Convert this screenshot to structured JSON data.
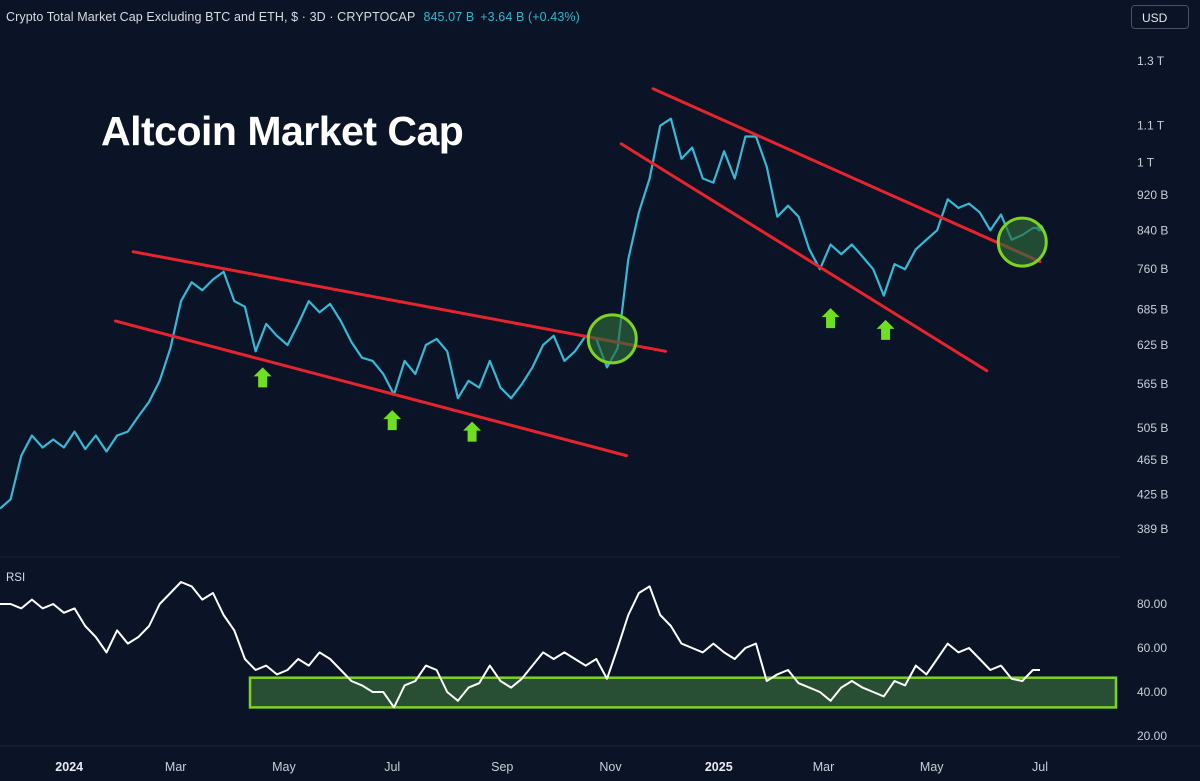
{
  "header": {
    "symbol": "Crypto Total Market Cap Excluding BTC and ETH, $ · 3D · CRYPTOCAP",
    "price": "845.07 B",
    "change": "+3.64 B (+0.43%)"
  },
  "currency_button": "USD",
  "annotation_title": "Altcoin Market Cap",
  "colors": {
    "background": "#0b1326",
    "price_line": "#35b9d6",
    "trendline": "#e5242d",
    "arrow": "#6ee021",
    "circle": "#7ed321",
    "rsi_line": "#ffffff",
    "rsi_zone": "#2e5a36"
  },
  "chart_data": [
    {
      "type": "line",
      "title": "Crypto Total Market Cap Excluding BTC and ETH",
      "y_scale": "log",
      "ylim": [
        370,
        1370
      ],
      "y_ticks": [
        {
          "label": "1.3 T",
          "value": 1300
        },
        {
          "label": "1.1 T",
          "value": 1100
        },
        {
          "label": "1 T",
          "value": 1000
        },
        {
          "label": "920 B",
          "value": 920
        },
        {
          "label": "840 B",
          "value": 840
        },
        {
          "label": "760 B",
          "value": 760
        },
        {
          "label": "685 B",
          "value": 685
        },
        {
          "label": "625 B",
          "value": 625
        },
        {
          "label": "565 B",
          "value": 565
        },
        {
          "label": "505 B",
          "value": 505
        },
        {
          "label": "465 B",
          "value": 465
        },
        {
          "label": "425 B",
          "value": 425
        },
        {
          "label": "389 B",
          "value": 389
        }
      ],
      "x_ticks": [
        {
          "label": "2024",
          "date": "2024-01-01",
          "bold": true
        },
        {
          "label": "Mar",
          "date": "2024-03-01"
        },
        {
          "label": "May",
          "date": "2024-05-01"
        },
        {
          "label": "Jul",
          "date": "2024-07-01"
        },
        {
          "label": "Sep",
          "date": "2024-09-01"
        },
        {
          "label": "Nov",
          "date": "2024-11-01"
        },
        {
          "label": "2025",
          "date": "2025-01-01",
          "bold": true
        },
        {
          "label": "Mar",
          "date": "2025-03-01"
        },
        {
          "label": "May",
          "date": "2025-05-01"
        },
        {
          "label": "Jul",
          "date": "2025-07-01"
        }
      ],
      "series": [
        {
          "name": "",
          "points": [
            [
              "2023-11-23",
              410
            ],
            [
              "2023-11-29",
              420
            ],
            [
              "2023-12-05",
              470
            ],
            [
              "2023-12-11",
              495
            ],
            [
              "2023-12-17",
              480
            ],
            [
              "2023-12-23",
              490
            ],
            [
              "2023-12-29",
              480
            ],
            [
              "2024-01-04",
              500
            ],
            [
              "2024-01-10",
              478
            ],
            [
              "2024-01-16",
              495
            ],
            [
              "2024-01-22",
              475
            ],
            [
              "2024-01-28",
              495
            ],
            [
              "2024-02-03",
              500
            ],
            [
              "2024-02-09",
              520
            ],
            [
              "2024-02-15",
              540
            ],
            [
              "2024-02-21",
              570
            ],
            [
              "2024-02-27",
              620
            ],
            [
              "2024-03-04",
              700
            ],
            [
              "2024-03-10",
              735
            ],
            [
              "2024-03-16",
              720
            ],
            [
              "2024-03-22",
              740
            ],
            [
              "2024-03-28",
              755
            ],
            [
              "2024-04-03",
              700
            ],
            [
              "2024-04-09",
              690
            ],
            [
              "2024-04-15",
              615
            ],
            [
              "2024-04-21",
              660
            ],
            [
              "2024-04-27",
              640
            ],
            [
              "2024-05-03",
              625
            ],
            [
              "2024-05-09",
              660
            ],
            [
              "2024-05-15",
              700
            ],
            [
              "2024-05-21",
              680
            ],
            [
              "2024-05-27",
              695
            ],
            [
              "2024-06-02",
              665
            ],
            [
              "2024-06-08",
              630
            ],
            [
              "2024-06-14",
              605
            ],
            [
              "2024-06-20",
              600
            ],
            [
              "2024-06-26",
              580
            ],
            [
              "2024-07-02",
              550
            ],
            [
              "2024-07-08",
              600
            ],
            [
              "2024-07-14",
              580
            ],
            [
              "2024-07-20",
              625
            ],
            [
              "2024-07-26",
              635
            ],
            [
              "2024-08-01",
              615
            ],
            [
              "2024-08-07",
              545
            ],
            [
              "2024-08-13",
              570
            ],
            [
              "2024-08-19",
              560
            ],
            [
              "2024-08-25",
              600
            ],
            [
              "2024-08-31",
              560
            ],
            [
              "2024-09-06",
              545
            ],
            [
              "2024-09-12",
              565
            ],
            [
              "2024-09-18",
              590
            ],
            [
              "2024-09-24",
              625
            ],
            [
              "2024-09-30",
              640
            ],
            [
              "2024-10-06",
              600
            ],
            [
              "2024-10-12",
              615
            ],
            [
              "2024-10-18",
              640
            ],
            [
              "2024-10-24",
              635
            ],
            [
              "2024-10-30",
              590
            ],
            [
              "2024-11-05",
              620
            ],
            [
              "2024-11-11",
              780
            ],
            [
              "2024-11-17",
              880
            ],
            [
              "2024-11-23",
              960
            ],
            [
              "2024-11-29",
              1100
            ],
            [
              "2024-12-05",
              1120
            ],
            [
              "2024-12-11",
              1010
            ],
            [
              "2024-12-17",
              1040
            ],
            [
              "2024-12-23",
              960
            ],
            [
              "2024-12-29",
              950
            ],
            [
              "2025-01-04",
              1030
            ],
            [
              "2025-01-10",
              960
            ],
            [
              "2025-01-16",
              1070
            ],
            [
              "2025-01-22",
              1070
            ],
            [
              "2025-01-28",
              990
            ],
            [
              "2025-02-03",
              870
            ],
            [
              "2025-02-09",
              895
            ],
            [
              "2025-02-15",
              870
            ],
            [
              "2025-02-21",
              800
            ],
            [
              "2025-02-27",
              760
            ],
            [
              "2025-03-05",
              810
            ],
            [
              "2025-03-11",
              790
            ],
            [
              "2025-03-17",
              810
            ],
            [
              "2025-03-23",
              785
            ],
            [
              "2025-03-29",
              760
            ],
            [
              "2025-04-04",
              710
            ],
            [
              "2025-04-10",
              770
            ],
            [
              "2025-04-16",
              760
            ],
            [
              "2025-04-22",
              800
            ],
            [
              "2025-04-28",
              820
            ],
            [
              "2025-05-04",
              840
            ],
            [
              "2025-05-10",
              910
            ],
            [
              "2025-05-16",
              890
            ],
            [
              "2025-05-22",
              900
            ],
            [
              "2025-05-28",
              880
            ],
            [
              "2025-06-03",
              840
            ],
            [
              "2025-06-09",
              875
            ],
            [
              "2025-06-15",
              820
            ],
            [
              "2025-06-21",
              830
            ],
            [
              "2025-06-27",
              845
            ],
            [
              "2025-07-01",
              845
            ]
          ]
        }
      ],
      "trendlines": [
        {
          "from": [
            "2024-02-06",
            795
          ],
          "to": [
            "2024-12-02",
            615
          ]
        },
        {
          "from": [
            "2024-01-27",
            665
          ],
          "to": [
            "2024-11-10",
            470
          ]
        },
        {
          "from": [
            "2024-11-25",
            1210
          ],
          "to": [
            "2025-07-01",
            775
          ]
        },
        {
          "from": [
            "2024-11-07",
            1050
          ],
          "to": [
            "2025-06-01",
            585
          ]
        }
      ],
      "arrows": [
        [
          "2024-04-19",
          575
        ],
        [
          "2024-07-01",
          515
        ],
        [
          "2024-08-15",
          500
        ],
        [
          "2025-03-05",
          670
        ],
        [
          "2025-04-05",
          650
        ]
      ],
      "circles": [
        {
          "center": [
            "2024-11-02",
            635
          ]
        },
        {
          "center": [
            "2025-06-21",
            815
          ]
        }
      ]
    },
    {
      "type": "line",
      "title": "RSI",
      "ylim": [
        15,
        95
      ],
      "y_ticks": [
        {
          "label": "80.00",
          "value": 80
        },
        {
          "label": "60.00",
          "value": 60
        },
        {
          "label": "40.00",
          "value": 40
        },
        {
          "label": "20.00",
          "value": 20
        }
      ],
      "zone": [
        33,
        46.5
      ],
      "series": [
        {
          "name": "",
          "points": [
            [
              "2023-11-23",
              80
            ],
            [
              "2023-11-29",
              80
            ],
            [
              "2023-12-05",
              78
            ],
            [
              "2023-12-11",
              82
            ],
            [
              "2023-12-17",
              78
            ],
            [
              "2023-12-23",
              80
            ],
            [
              "2023-12-29",
              76
            ],
            [
              "2024-01-04",
              78
            ],
            [
              "2024-01-10",
              70
            ],
            [
              "2024-01-16",
              65
            ],
            [
              "2024-01-22",
              58
            ],
            [
              "2024-01-28",
              68
            ],
            [
              "2024-02-03",
              62
            ],
            [
              "2024-02-09",
              65
            ],
            [
              "2024-02-15",
              70
            ],
            [
              "2024-02-21",
              80
            ],
            [
              "2024-02-27",
              85
            ],
            [
              "2024-03-04",
              90
            ],
            [
              "2024-03-10",
              88
            ],
            [
              "2024-03-16",
              82
            ],
            [
              "2024-03-22",
              85
            ],
            [
              "2024-03-28",
              75
            ],
            [
              "2024-04-03",
              68
            ],
            [
              "2024-04-09",
              55
            ],
            [
              "2024-04-15",
              50
            ],
            [
              "2024-04-21",
              52
            ],
            [
              "2024-04-27",
              48
            ],
            [
              "2024-05-03",
              50
            ],
            [
              "2024-05-09",
              55
            ],
            [
              "2024-05-15",
              52
            ],
            [
              "2024-05-21",
              58
            ],
            [
              "2024-05-27",
              55
            ],
            [
              "2024-06-02",
              50
            ],
            [
              "2024-06-08",
              45
            ],
            [
              "2024-06-14",
              43
            ],
            [
              "2024-06-20",
              40
            ],
            [
              "2024-06-26",
              40
            ],
            [
              "2024-07-02",
              33
            ],
            [
              "2024-07-08",
              43
            ],
            [
              "2024-07-14",
              45
            ],
            [
              "2024-07-20",
              52
            ],
            [
              "2024-07-26",
              50
            ],
            [
              "2024-08-01",
              40
            ],
            [
              "2024-08-07",
              36
            ],
            [
              "2024-08-13",
              42
            ],
            [
              "2024-08-19",
              44
            ],
            [
              "2024-08-25",
              52
            ],
            [
              "2024-08-31",
              45
            ],
            [
              "2024-09-06",
              42
            ],
            [
              "2024-09-12",
              46
            ],
            [
              "2024-09-18",
              52
            ],
            [
              "2024-09-24",
              58
            ],
            [
              "2024-09-30",
              55
            ],
            [
              "2024-10-06",
              58
            ],
            [
              "2024-10-12",
              55
            ],
            [
              "2024-10-18",
              52
            ],
            [
              "2024-10-24",
              55
            ],
            [
              "2024-10-30",
              46
            ],
            [
              "2024-11-05",
              60
            ],
            [
              "2024-11-11",
              75
            ],
            [
              "2024-11-17",
              85
            ],
            [
              "2024-11-23",
              88
            ],
            [
              "2024-11-29",
              75
            ],
            [
              "2024-12-05",
              70
            ],
            [
              "2024-12-11",
              62
            ],
            [
              "2024-12-17",
              60
            ],
            [
              "2024-12-23",
              58
            ],
            [
              "2024-12-29",
              62
            ],
            [
              "2025-01-04",
              58
            ],
            [
              "2025-01-10",
              55
            ],
            [
              "2025-01-16",
              60
            ],
            [
              "2025-01-22",
              62
            ],
            [
              "2025-01-28",
              45
            ],
            [
              "2025-02-03",
              48
            ],
            [
              "2025-02-09",
              50
            ],
            [
              "2025-02-15",
              44
            ],
            [
              "2025-02-21",
              42
            ],
            [
              "2025-02-27",
              40
            ],
            [
              "2025-03-05",
              36
            ],
            [
              "2025-03-11",
              42
            ],
            [
              "2025-03-17",
              45
            ],
            [
              "2025-03-23",
              42
            ],
            [
              "2025-03-29",
              40
            ],
            [
              "2025-04-04",
              38
            ],
            [
              "2025-04-10",
              45
            ],
            [
              "2025-04-16",
              43
            ],
            [
              "2025-04-22",
              52
            ],
            [
              "2025-04-28",
              48
            ],
            [
              "2025-05-04",
              55
            ],
            [
              "2025-05-10",
              62
            ],
            [
              "2025-05-16",
              58
            ],
            [
              "2025-05-22",
              60
            ],
            [
              "2025-05-28",
              55
            ],
            [
              "2025-06-03",
              50
            ],
            [
              "2025-06-09",
              52
            ],
            [
              "2025-06-15",
              46
            ],
            [
              "2025-06-21",
              45
            ],
            [
              "2025-06-27",
              50
            ],
            [
              "2025-07-01",
              50
            ]
          ]
        }
      ]
    }
  ]
}
